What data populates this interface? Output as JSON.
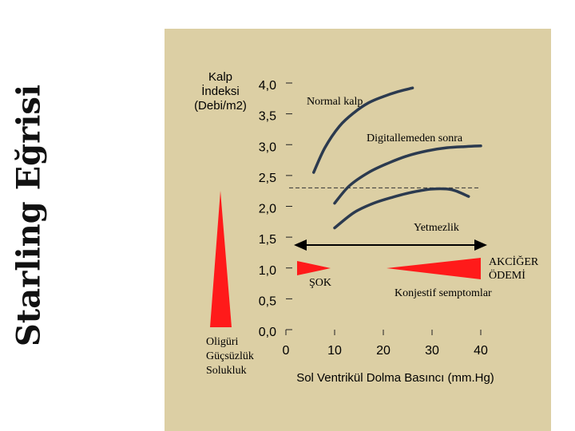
{
  "side_title": "Starling Eğrisi",
  "colors": {
    "panel": "#dccfa4",
    "curve": "#2b3a4f",
    "triangle": "#ff1a1a",
    "text": "#111111"
  },
  "chart_data": {
    "type": "line",
    "xlabel": "Sol Ventrikül Dolma Basıncı (mm.Hg)",
    "ylabel_lines": [
      "Kalp",
      "İndeksi",
      "(Debi/m2)"
    ],
    "x_ticks": [
      0,
      10,
      20,
      30,
      40
    ],
    "x_tick_labels": [
      "0",
      "10",
      "20",
      "30",
      "40"
    ],
    "y_ticks": [
      0,
      0.5,
      1.0,
      1.5,
      2.0,
      2.5,
      3.0,
      3.5,
      4.0
    ],
    "y_tick_labels": [
      "0,0",
      "0,5",
      "1,0",
      "1,5",
      "2,0",
      "2,5",
      "3,0",
      "3,5",
      "4,0"
    ],
    "xlim": [
      0,
      40
    ],
    "ylim": [
      0,
      4.0
    ],
    "series": [
      {
        "name": "Normal kalp",
        "x": [
          5.7,
          8,
          11,
          14,
          17,
          20,
          23,
          26
        ],
        "y": [
          2.55,
          2.95,
          3.3,
          3.52,
          3.68,
          3.78,
          3.86,
          3.92
        ]
      },
      {
        "name": "Digitallemeden sonra",
        "x": [
          10,
          13,
          17,
          21,
          25,
          29,
          33,
          37,
          40
        ],
        "y": [
          2.05,
          2.33,
          2.55,
          2.7,
          2.82,
          2.9,
          2.95,
          2.97,
          2.98
        ]
      },
      {
        "name": "Yetmezlik",
        "x": [
          10,
          14,
          18,
          22,
          26,
          30,
          34,
          37.5
        ],
        "y": [
          1.65,
          1.9,
          2.05,
          2.15,
          2.23,
          2.28,
          2.27,
          2.16
        ]
      }
    ],
    "reference_line": {
      "y": 2.3,
      "style": "dashed"
    },
    "annotations": {
      "normal_kalp": "Normal kalp",
      "digital": "Digitallemeden sonra",
      "yetmezlik": "Yetmezlik",
      "sok": "ŞOK",
      "akciger_odemi_line1": "AKCİĞER",
      "akciger_odemi_line2": "ÖDEMİ",
      "konjestif": "Konjestif semptomlar",
      "oliguri": "Oligüri",
      "gucsuzluk": "Güçsüzlük",
      "solukluk": "Solukluk"
    }
  }
}
